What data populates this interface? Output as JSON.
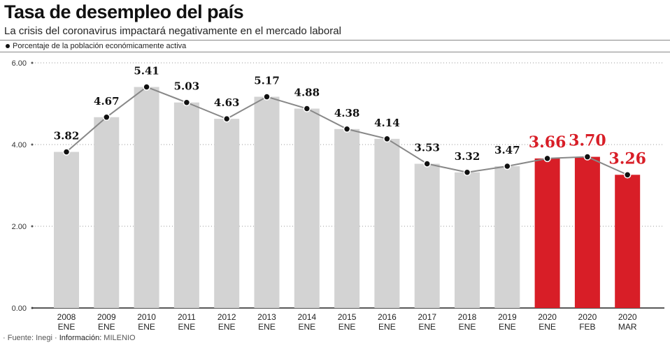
{
  "chart_data": {
    "type": "bar",
    "title": "Tasa de desempleo del país",
    "subtitle": "La crisis del coronavirus impactará negativamente en el mercado laboral",
    "legend": "Porcentaje de la población económicamente activa",
    "categories": [
      [
        "2008",
        "ENE"
      ],
      [
        "2009",
        "ENE"
      ],
      [
        "2010",
        "ENE"
      ],
      [
        "2011",
        "ENE"
      ],
      [
        "2012",
        "ENE"
      ],
      [
        "2013",
        "ENE"
      ],
      [
        "2014",
        "ENE"
      ],
      [
        "2015",
        "ENE"
      ],
      [
        "2016",
        "ENE"
      ],
      [
        "2017",
        "ENE"
      ],
      [
        "2018",
        "ENE"
      ],
      [
        "2019",
        "ENE"
      ],
      [
        "2020",
        "ENE"
      ],
      [
        "2020",
        "FEB"
      ],
      [
        "2020",
        "MAR"
      ]
    ],
    "values": [
      3.82,
      4.67,
      5.41,
      5.03,
      4.63,
      5.17,
      4.88,
      4.38,
      4.14,
      3.53,
      3.32,
      3.47,
      3.66,
      3.7,
      3.26
    ],
    "labels": [
      "3.82",
      "4.67",
      "5.41",
      "5.03",
      "4.63",
      "5.17",
      "4.88",
      "4.38",
      "4.14",
      "3.53",
      "3.32",
      "3.47",
      "3.66",
      "3.70",
      "3.26"
    ],
    "highlight": [
      false,
      false,
      false,
      false,
      false,
      false,
      false,
      false,
      false,
      false,
      false,
      false,
      true,
      true,
      true
    ],
    "yticks": [
      "0.00",
      "2.00",
      "4.00",
      "6.00"
    ],
    "ylim": [
      0,
      6
    ],
    "grid": true,
    "colors": {
      "bar": "#d3d3d3",
      "highlight": "#d81e27",
      "line": "#888888",
      "dot": "#111111"
    }
  },
  "footer": {
    "p1": "· Fuente:",
    "p2": " Inegi · ",
    "p3": "Información:",
    "p4": " MILENIO"
  }
}
